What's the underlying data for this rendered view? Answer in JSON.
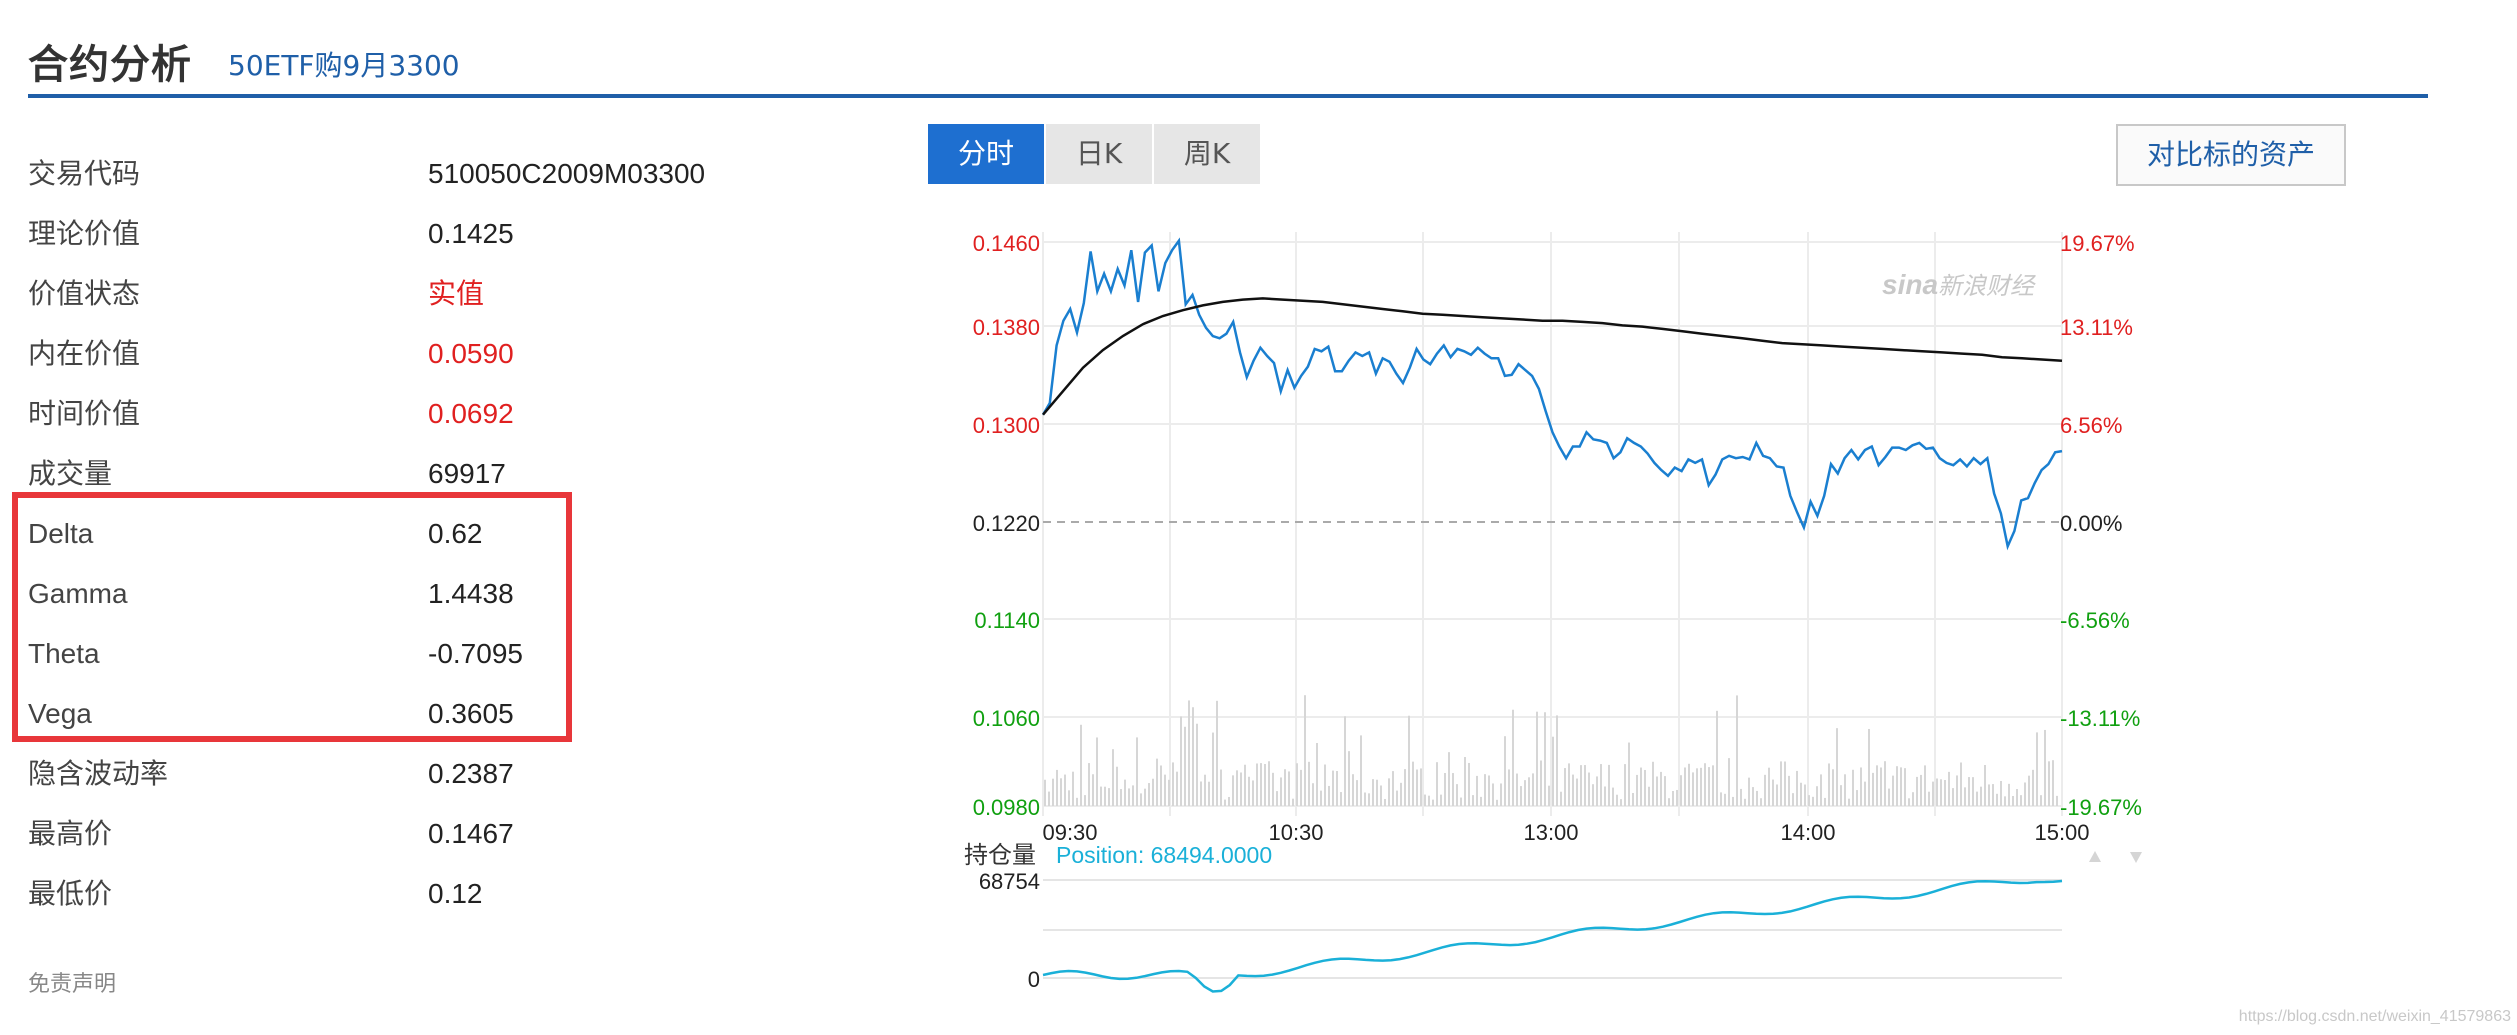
{
  "header": {
    "title": "合约分析",
    "subtitle": "50ETF购9月3300"
  },
  "info_rows": [
    {
      "label": "交易代码",
      "value": "510050C2009M03300"
    },
    {
      "label": "理论价值",
      "value": "0.1425"
    },
    {
      "label": "价值状态",
      "value": "实值"
    },
    {
      "label": "内在价值",
      "value": "0.0590"
    },
    {
      "label": "时间价值",
      "value": "0.0692"
    },
    {
      "label": "成交量",
      "value": "69917"
    },
    {
      "label": "Delta",
      "value": "0.62"
    },
    {
      "label": "Gamma",
      "value": "1.4438"
    },
    {
      "label": "Theta",
      "value": "-0.7095"
    },
    {
      "label": "Vega",
      "value": "0.3605"
    },
    {
      "label": "隐含波动率",
      "value": "0.2387"
    },
    {
      "label": "最高价",
      "value": "0.1467"
    },
    {
      "label": "最低价",
      "value": "0.12"
    }
  ],
  "disclaimer": "免责声明",
  "tabs": [
    {
      "label": "分时",
      "active": true
    },
    {
      "label": "日K",
      "active": false
    },
    {
      "label": "周K",
      "active": false
    }
  ],
  "compare_button": "对比标的资产",
  "watermark": {
    "logo": "sina",
    "text": "新浪财经"
  },
  "position_label": "持仓量",
  "position_readout": "Position: 68494.0000",
  "footer_watermark": "https://blog.csdn.net/weixin_41579863",
  "colors": {
    "accent": "#1e6fd0",
    "up": "#e02020",
    "down": "#10a010",
    "price_line": "#1a7fd0",
    "avg_line": "#111111",
    "position_line": "#1ab0d8",
    "highlight": "#e8363a"
  },
  "chart_data": [
    {
      "type": "line",
      "y_ticks_left": [
        "0.1460",
        "0.1380",
        "0.1300",
        "0.1220",
        "0.1140",
        "0.1060",
        "0.0980"
      ],
      "y_ticks_right": [
        "19.67%",
        "13.11%",
        "6.56%",
        "0.00%",
        "-6.56%",
        "-13.11%",
        "-19.67%"
      ],
      "x_ticks": [
        "09:30",
        "10:30",
        "13:00",
        "14:00",
        "15:00"
      ],
      "ylim": [
        0.098,
        0.146
      ],
      "prev_close": 0.122,
      "series": [
        {
          "values": [
            0.1313,
            0.1323,
            0.1372,
            0.1393,
            0.1403,
            0.1383,
            0.1408,
            0.1452,
            0.1418,
            0.1433,
            0.1418,
            0.1437,
            0.1423,
            0.1453,
            0.1409,
            0.1451,
            0.1457,
            0.1418,
            0.1442,
            0.1453,
            0.1461,
            0.1407,
            0.1415,
            0.1398,
            0.1387,
            0.138,
            0.1378,
            0.1382,
            0.1392,
            0.1366,
            0.1345,
            0.1359,
            0.137,
            0.1363,
            0.1357,
            0.1333,
            0.1351,
            0.1336,
            0.1346,
            0.1354,
            0.1369,
            0.1367,
            0.1371,
            0.135,
            0.135,
            0.1359,
            0.1366,
            0.1363,
            0.1366,
            0.1348,
            0.1361,
            0.1358,
            0.1348,
            0.134,
            0.1353,
            0.1369,
            0.136,
            0.1356,
            0.1365,
            0.1372,
            0.1362,
            0.1369,
            0.1367,
            0.1364,
            0.137,
            0.1365,
            0.1361,
            0.1361,
            0.1346,
            0.1347,
            0.1356,
            0.1351,
            0.1346,
            0.1335,
            0.1316,
            0.1298,
            0.1286,
            0.1276,
            0.1286,
            0.1286,
            0.1298,
            0.1292,
            0.1291,
            0.1289,
            0.1276,
            0.1281,
            0.1293,
            0.1289,
            0.1286,
            0.128,
            0.1272,
            0.1266,
            0.1261,
            0.1268,
            0.1265,
            0.1275,
            0.1272,
            0.1275,
            0.1253,
            0.1262,
            0.1275,
            0.1278,
            0.1276,
            0.1277,
            0.1275,
            0.1289,
            0.1278,
            0.1276,
            0.1269,
            0.1268,
            0.1244,
            0.123,
            0.1217,
            0.1239,
            0.1227,
            0.1244,
            0.1271,
            0.1263,
            0.1276,
            0.1283,
            0.1275,
            0.1283,
            0.1286,
            0.127,
            0.1277,
            0.1285,
            0.1285,
            0.1283,
            0.1287,
            0.1289,
            0.1284,
            0.1285,
            0.1276,
            0.1272,
            0.127,
            0.1275,
            0.1269,
            0.1276,
            0.1271,
            0.1276,
            0.1246,
            0.1229,
            0.1201,
            0.1214,
            0.124,
            0.1242,
            0.1255,
            0.1266,
            0.1271,
            0.1281,
            0.1282
          ]
        },
        {
          "values": [
            0.1313,
            0.1333,
            0.1353,
            0.1368,
            0.138,
            0.139,
            0.1397,
            0.1402,
            0.1406,
            0.1409,
            0.1411,
            0.1412,
            0.1411,
            0.141,
            0.1409,
            0.1407,
            0.1405,
            0.1403,
            0.1401,
            0.1399,
            0.1398,
            0.1397,
            0.1396,
            0.1395,
            0.1394,
            0.1393,
            0.1393,
            0.1392,
            0.1391,
            0.1389,
            0.1388,
            0.1386,
            0.1384,
            0.1382,
            0.138,
            0.1378,
            0.1376,
            0.1374,
            0.1373,
            0.1372,
            0.1371,
            0.137,
            0.1369,
            0.1368,
            0.1367,
            0.1366,
            0.1365,
            0.1364,
            0.1362,
            0.1361,
            0.136,
            0.1359
          ]
        }
      ]
    },
    {
      "type": "bar",
      "title": "",
      "note": "intraday volume bars below price chart"
    },
    {
      "type": "line",
      "y_ticks_left": [
        "68754",
        "0"
      ],
      "series": [
        {
          "values": [
            0.0,
            0.0,
            0.0,
            0.0,
            0.0,
            0.0,
            0.0,
            0.0,
            0.0,
            0.0,
            0.0,
            0.0,
            0.0,
            0.0,
            0.0,
            0.0,
            0.0,
            0.0,
            0.0,
            0.0,
            0.0,
            0.0,
            0.0,
            0.0,
            0.0,
            0.0,
            0.0,
            0.0,
            0.0,
            0.0,
            0.0,
            0.0,
            0.0,
            0.0,
            0.0,
            0.0,
            0.0,
            0.0,
            0.0,
            0.0,
            0.0,
            0.0,
            0.0,
            0.0,
            0.0,
            0.0,
            0.0,
            0.0,
            0.0,
            0.0
          ]
        }
      ]
    }
  ]
}
